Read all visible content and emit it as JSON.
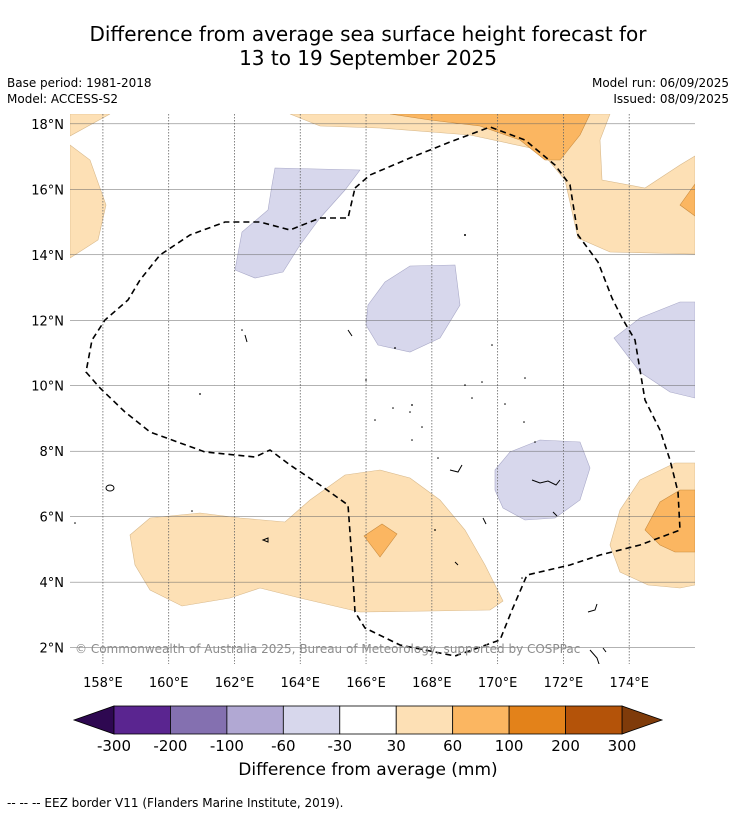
{
  "title": {
    "line1": "Difference from average sea surface height forecast for",
    "line2": "13 to 19 September 2025"
  },
  "meta": {
    "base_period": "Base period: 1981-2018",
    "model": "Model: ACCESS-S2",
    "model_run": "Model run: 06/09/2025",
    "issued": "Issued: 08/09/2025"
  },
  "map": {
    "lon_range": [
      157,
      176
    ],
    "lat_range": [
      1.5,
      18.3
    ],
    "lon_ticks": [
      "158°E",
      "160°E",
      "162°E",
      "164°E",
      "166°E",
      "168°E",
      "170°E",
      "172°E",
      "174°E"
    ],
    "lat_ticks": [
      "2°N",
      "4°N",
      "6°N",
      "8°N",
      "10°N",
      "12°N",
      "14°N",
      "16°N",
      "18°N"
    ],
    "grid": true,
    "copyright": "© Commonwealth of Australia 2025, Bureau of Meteorology, supported by COSPPac"
  },
  "colorbar": {
    "title": "Difference from average (mm)",
    "tick_labels": [
      "-300",
      "-200",
      "-100",
      "-60",
      "-30",
      "30",
      "60",
      "100",
      "200",
      "300"
    ],
    "colors": [
      "#5a2590",
      "#8470b0",
      "#b1a8d3",
      "#d7d7ec",
      "#ffffff",
      "#fde0b5",
      "#fbb661",
      "#e3821a",
      "#b45309"
    ],
    "under_color": "#2e0851",
    "over_color": "#7f3b0a"
  },
  "footnote": "-- -- -- EEZ border V11 (Flanders Marine Institute, 2019)."
}
